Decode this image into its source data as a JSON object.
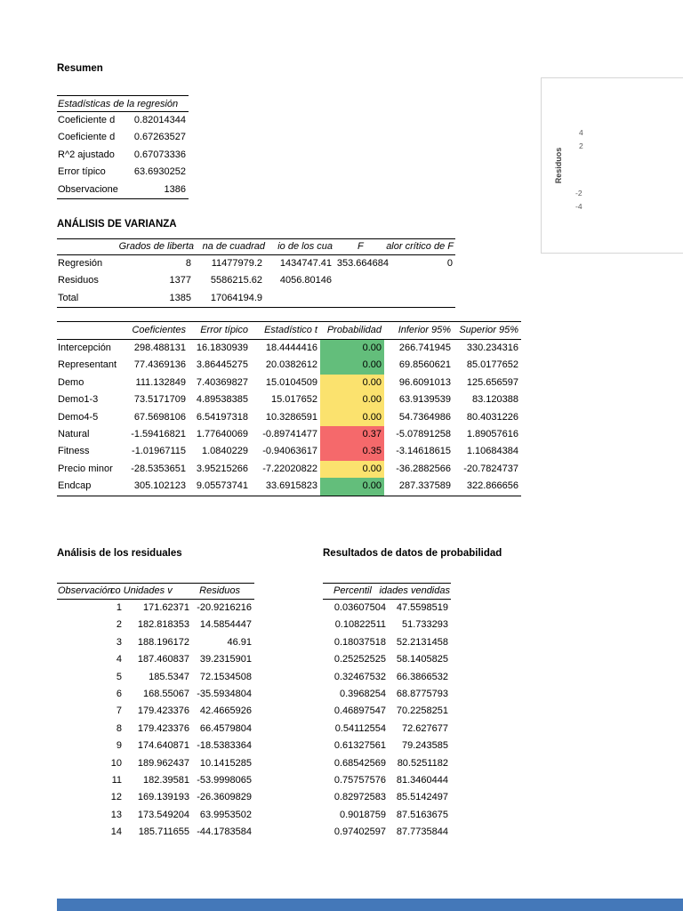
{
  "labels": {
    "resumen": "Resumen",
    "anova": "ANÁLISIS DE VARIANZA",
    "residuals": "Análisis de los residuales",
    "probability": "Resultados de datos de probabilidad"
  },
  "regression_stats": {
    "title": "Estadísticas de la regresión",
    "rows": [
      [
        "Coeficiente d",
        "0.82014344"
      ],
      [
        "Coeficiente d",
        "0.67263527"
      ],
      [
        "R^2  ajustado",
        "0.67073336"
      ],
      [
        "Error típico",
        "63.6930252"
      ],
      [
        "Observacione",
        "1386"
      ]
    ]
  },
  "anova": {
    "headers": [
      "Grados de liberta",
      "na de cuadrad",
      "io de los cua",
      "F",
      "alor crítico de F"
    ],
    "rows": [
      [
        "Regresión",
        "8",
        "11477979.2",
        "1434747.41",
        "353.664684",
        "0"
      ],
      [
        "Residuos",
        "1377",
        "5586215.62",
        "4056.80146",
        "",
        ""
      ],
      [
        "Total",
        "1385",
        "17064194.9",
        "",
        "",
        ""
      ]
    ]
  },
  "coefficients": {
    "headers": [
      "",
      "Coeficientes",
      "Error típico",
      "Estadístico t",
      "Probabilidad",
      "Inferior 95%",
      "Superior 95%"
    ],
    "rows": [
      {
        "cells": [
          "Intercepción",
          "298.488131",
          "16.1830939",
          "18.4444416",
          "0.00",
          "266.741945",
          "330.234316"
        ],
        "colors": {
          "4": "green"
        }
      },
      {
        "cells": [
          "Representant",
          "77.4369136",
          "3.86445275",
          "20.0382612",
          "0.00",
          "69.8560621",
          "85.0177652"
        ],
        "colors": {
          "4": "green"
        }
      },
      {
        "cells": [
          "Demo",
          "111.132849",
          "7.40369827",
          "15.0104509",
          "0.00",
          "96.6091013",
          "125.656597"
        ],
        "colors": {
          "4": "yellow"
        }
      },
      {
        "cells": [
          "Demo1-3",
          "73.5171709",
          "4.89538385",
          "15.017652",
          "0.00",
          "63.9139539",
          "83.120388"
        ],
        "colors": {
          "4": "yellow"
        }
      },
      {
        "cells": [
          "Demo4-5",
          "67.5698106",
          "6.54197318",
          "10.3286591",
          "0.00",
          "54.7364986",
          "80.4031226"
        ],
        "colors": {
          "4": "yellow"
        }
      },
      {
        "cells": [
          "Natural",
          "-1.59416821",
          "1.77640069",
          "-0.89741477",
          "0.37",
          "-5.07891258",
          "1.89057616"
        ],
        "colors": {
          "4": "red"
        }
      },
      {
        "cells": [
          "Fitness",
          "-1.01967115",
          "1.0840229",
          "-0.94063617",
          "0.35",
          "-3.14618615",
          "1.10684384"
        ],
        "colors": {
          "4": "red"
        }
      },
      {
        "cells": [
          "Precio minor",
          "-28.5353651",
          "3.95215266",
          "-7.22020822",
          "0.00",
          "-36.2882566",
          "-20.7824737"
        ],
        "colors": {
          "4": "yellow"
        }
      },
      {
        "cells": [
          "Endcap",
          "305.102123",
          "9.05573741",
          "33.6915823",
          "0.00",
          "287.337589",
          "322.866656"
        ],
        "colors": {
          "4": "green"
        }
      }
    ]
  },
  "residuals": {
    "headers": [
      "Observación",
      "co Unidades v",
      "Residuos"
    ],
    "rows": [
      [
        "1",
        "171.62371",
        "-20.9216216"
      ],
      [
        "2",
        "182.818353",
        "14.5854447"
      ],
      [
        "3",
        "188.196172",
        "46.91"
      ],
      [
        "4",
        "187.460837",
        "39.2315901"
      ],
      [
        "5",
        "185.5347",
        "72.1534508"
      ],
      [
        "6",
        "168.55067",
        "-35.5934804"
      ],
      [
        "7",
        "179.423376",
        "42.4665926"
      ],
      [
        "8",
        "179.423376",
        "66.4579804"
      ],
      [
        "9",
        "174.640871",
        "-18.5383364"
      ],
      [
        "10",
        "189.962437",
        "10.1415285"
      ],
      [
        "11",
        "182.39581",
        "-53.9998065"
      ],
      [
        "12",
        "169.139193",
        "-26.3609829"
      ],
      [
        "13",
        "173.549204",
        "63.9953502"
      ],
      [
        "14",
        "185.711655",
        "-44.1783584"
      ]
    ]
  },
  "probability": {
    "headers": [
      "Percentil",
      "idades vendidas"
    ],
    "rows": [
      [
        "0.03607504",
        "47.5598519"
      ],
      [
        "0.10822511",
        "51.733293"
      ],
      [
        "0.18037518",
        "52.2131458"
      ],
      [
        "0.25252525",
        "58.1405825"
      ],
      [
        "0.32467532",
        "66.3866532"
      ],
      [
        "0.3968254",
        "68.8775793"
      ],
      [
        "0.46897547",
        "70.2258251"
      ],
      [
        "0.54112554",
        "72.627677"
      ],
      [
        "0.61327561",
        "79.243585"
      ],
      [
        "0.68542569",
        "80.5251182"
      ],
      [
        "0.75757576",
        "81.3460444"
      ],
      [
        "0.82972583",
        "85.5142497"
      ],
      [
        "0.9018759",
        "87.5163675"
      ],
      [
        "0.97402597",
        "87.7735844"
      ]
    ]
  },
  "residual_chart": {
    "ylabel": "Residuos",
    "ticks": [
      "4",
      "2",
      "-2",
      "-4"
    ]
  },
  "colors": {
    "green": "#63be7b",
    "yellow": "#fbe26e",
    "red": "#f5696b",
    "chart_bar_blue": "#4478b9"
  }
}
